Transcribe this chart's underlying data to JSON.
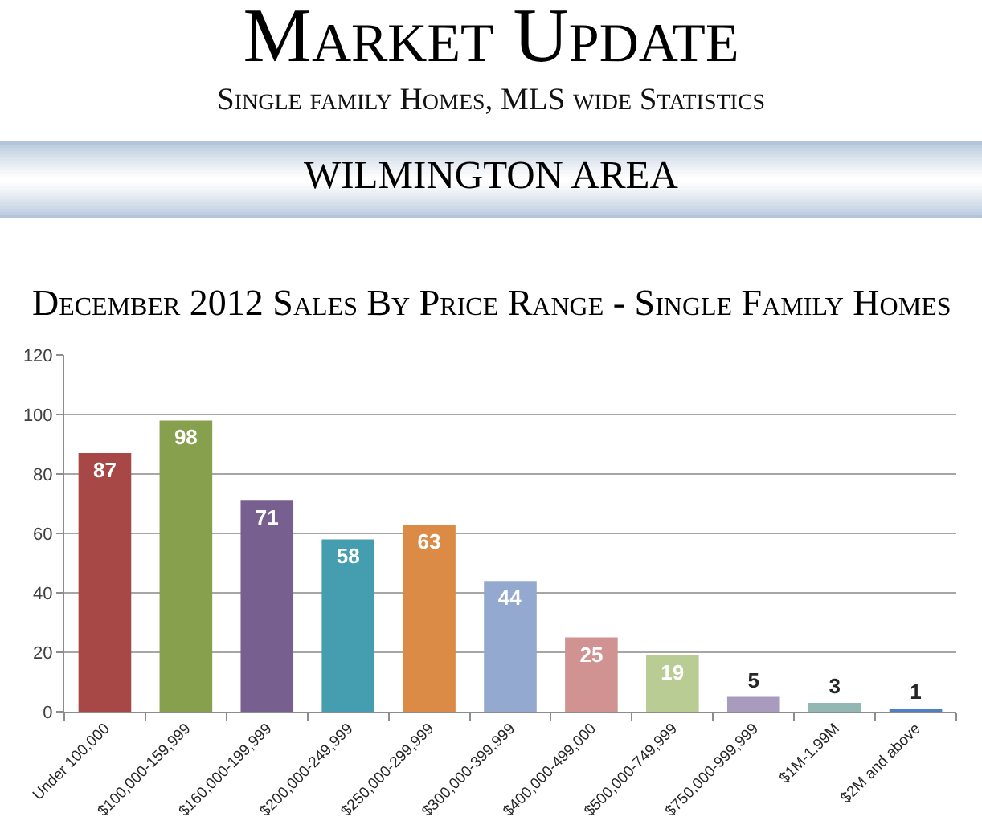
{
  "chart_data": {
    "type": "bar",
    "title": "Market Update",
    "subtitle": "Single family Homes, MLS wide Statistics",
    "annotations": [
      "WILMINGTON AREA",
      "December 2012 Sales By Price Range - Single Family Homes"
    ],
    "categories": [
      "Under 100,000",
      "$100,000-159,999",
      "$160,000-199,999",
      "$200,000-249,999",
      "$250,000-299,999",
      "$300,000-399,999",
      "$400,000-499,000",
      "$500,000-749,999",
      "$750,000-999,999",
      "$1M-1.99M",
      "$2M and above"
    ],
    "values": [
      87,
      98,
      71,
      58,
      63,
      44,
      25,
      19,
      5,
      3,
      1
    ],
    "colors": [
      "#a84846",
      "#86a04e",
      "#77608f",
      "#459db0",
      "#db8b46",
      "#93a9d0",
      "#d09391",
      "#b8cc94",
      "#a89bbd",
      "#93b8b4",
      "#4e81c4"
    ],
    "ylim": [
      0,
      120
    ],
    "yticks": [
      0,
      20,
      40,
      60,
      80,
      100,
      120
    ],
    "grid": "y",
    "data_labels": true
  }
}
